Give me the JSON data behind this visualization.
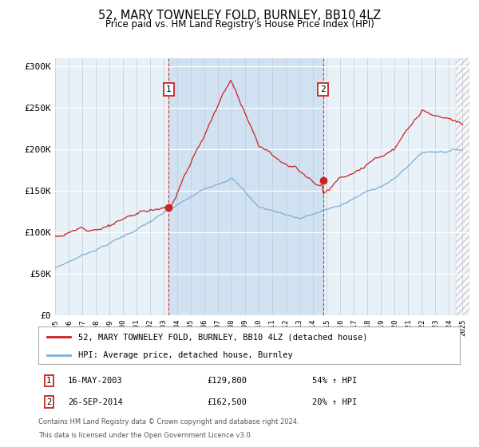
{
  "title": "52, MARY TOWNELEY FOLD, BURNLEY, BB10 4LZ",
  "subtitle": "Price paid vs. HM Land Registry's House Price Index (HPI)",
  "ylim": [
    0,
    310000
  ],
  "yticks": [
    0,
    50000,
    100000,
    150000,
    200000,
    250000,
    300000
  ],
  "ytick_labels": [
    "£0",
    "£50K",
    "£100K",
    "£150K",
    "£200K",
    "£250K",
    "£300K"
  ],
  "sale1_year": 2003.37,
  "sale1_price": 129800,
  "sale1_date_str": "16-MAY-2003",
  "sale1_pct": "54%",
  "sale2_year": 2014.73,
  "sale2_price": 162500,
  "sale2_date_str": "26-SEP-2014",
  "sale2_pct": "20%",
  "legend_label1": "52, MARY TOWNELEY FOLD, BURNLEY, BB10 4LZ (detached house)",
  "legend_label2": "HPI: Average price, detached house, Burnley",
  "footnote1": "Contains HM Land Registry data © Crown copyright and database right 2024.",
  "footnote2": "This data is licensed under the Open Government Licence v3.0.",
  "hpi_color": "#7bafd4",
  "price_color": "#cc2222",
  "shade_color": "#cce0f0",
  "background_plot": "#e8f0f8",
  "background_fig": "#ffffff",
  "xlim_start": 1995,
  "xlim_end": 2025.5
}
